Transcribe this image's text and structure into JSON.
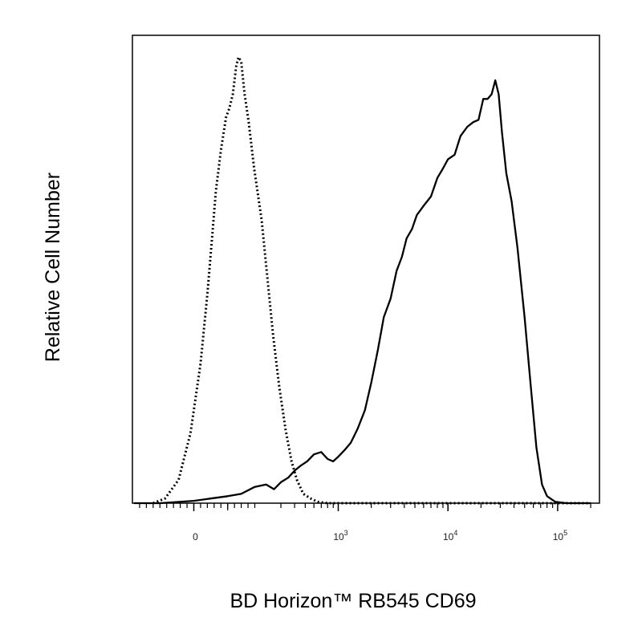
{
  "chart_data": {
    "type": "line",
    "title": "",
    "xlabel": "BD Horizon™ RB545 CD69",
    "ylabel": "Relative Cell Number",
    "x_scale": "biexponential",
    "xlim": [
      -250,
      250000
    ],
    "ylim": [
      0,
      100
    ],
    "grid": false,
    "legend": "none",
    "x_ticks": [
      {
        "value": 0,
        "base": "0",
        "exp": ""
      },
      {
        "value": 1000,
        "base": "10",
        "exp": "3"
      },
      {
        "value": 10000,
        "base": "10",
        "exp": "4"
      },
      {
        "value": 100000,
        "base": "10",
        "exp": "5"
      }
    ],
    "series": [
      {
        "style": "dotted",
        "color": "#000000",
        "points": [
          [
            -120,
            0
          ],
          [
            -85,
            1
          ],
          [
            -45,
            5
          ],
          [
            -10,
            15
          ],
          [
            20,
            30
          ],
          [
            40,
            45
          ],
          [
            55,
            58
          ],
          [
            65,
            67
          ],
          [
            80,
            76
          ],
          [
            95,
            83
          ],
          [
            105,
            85
          ],
          [
            115,
            88
          ],
          [
            125,
            94
          ],
          [
            132,
            96
          ],
          [
            140,
            95
          ],
          [
            150,
            88
          ],
          [
            162,
            82
          ],
          [
            178,
            72
          ],
          [
            200,
            61
          ],
          [
            225,
            49
          ],
          [
            255,
            36
          ],
          [
            290,
            25
          ],
          [
            330,
            16
          ],
          [
            375,
            9
          ],
          [
            420,
            5
          ],
          [
            480,
            2
          ],
          [
            560,
            1
          ],
          [
            650,
            0.3
          ],
          [
            800,
            0
          ],
          [
            3000,
            0
          ],
          [
            200000,
            0
          ]
        ]
      },
      {
        "style": "solid",
        "color": "#000000",
        "points": [
          [
            -200,
            0
          ],
          [
            -100,
            0
          ],
          [
            0,
            0.5
          ],
          [
            50,
            1
          ],
          [
            100,
            1.5
          ],
          [
            140,
            2
          ],
          [
            180,
            3.5
          ],
          [
            220,
            4
          ],
          [
            260,
            3
          ],
          [
            300,
            4.5
          ],
          [
            350,
            5.5
          ],
          [
            400,
            7
          ],
          [
            450,
            8
          ],
          [
            520,
            9
          ],
          [
            600,
            10.5
          ],
          [
            700,
            11
          ],
          [
            800,
            9.5
          ],
          [
            900,
            9
          ],
          [
            1000,
            10
          ],
          [
            1150,
            11.5
          ],
          [
            1300,
            13
          ],
          [
            1500,
            16
          ],
          [
            1750,
            20
          ],
          [
            2000,
            26
          ],
          [
            2300,
            33
          ],
          [
            2600,
            40
          ],
          [
            3000,
            44
          ],
          [
            3400,
            50
          ],
          [
            3800,
            53
          ],
          [
            4200,
            57
          ],
          [
            4700,
            59
          ],
          [
            5200,
            62
          ],
          [
            6000,
            64
          ],
          [
            7000,
            66
          ],
          [
            8000,
            70
          ],
          [
            9000,
            72
          ],
          [
            10000,
            74
          ],
          [
            11500,
            75
          ],
          [
            13000,
            79
          ],
          [
            15000,
            81
          ],
          [
            17000,
            82
          ],
          [
            19000,
            82.5
          ],
          [
            21000,
            87
          ],
          [
            23000,
            87
          ],
          [
            25000,
            88
          ],
          [
            27000,
            91
          ],
          [
            29000,
            88
          ],
          [
            31000,
            80
          ],
          [
            34000,
            71
          ],
          [
            38000,
            65
          ],
          [
            43000,
            55
          ],
          [
            50000,
            40
          ],
          [
            57000,
            25
          ],
          [
            64000,
            12
          ],
          [
            72000,
            4
          ],
          [
            80000,
            1.5
          ],
          [
            95000,
            0.3
          ],
          [
            120000,
            0
          ],
          [
            200000,
            0
          ]
        ]
      }
    ]
  }
}
